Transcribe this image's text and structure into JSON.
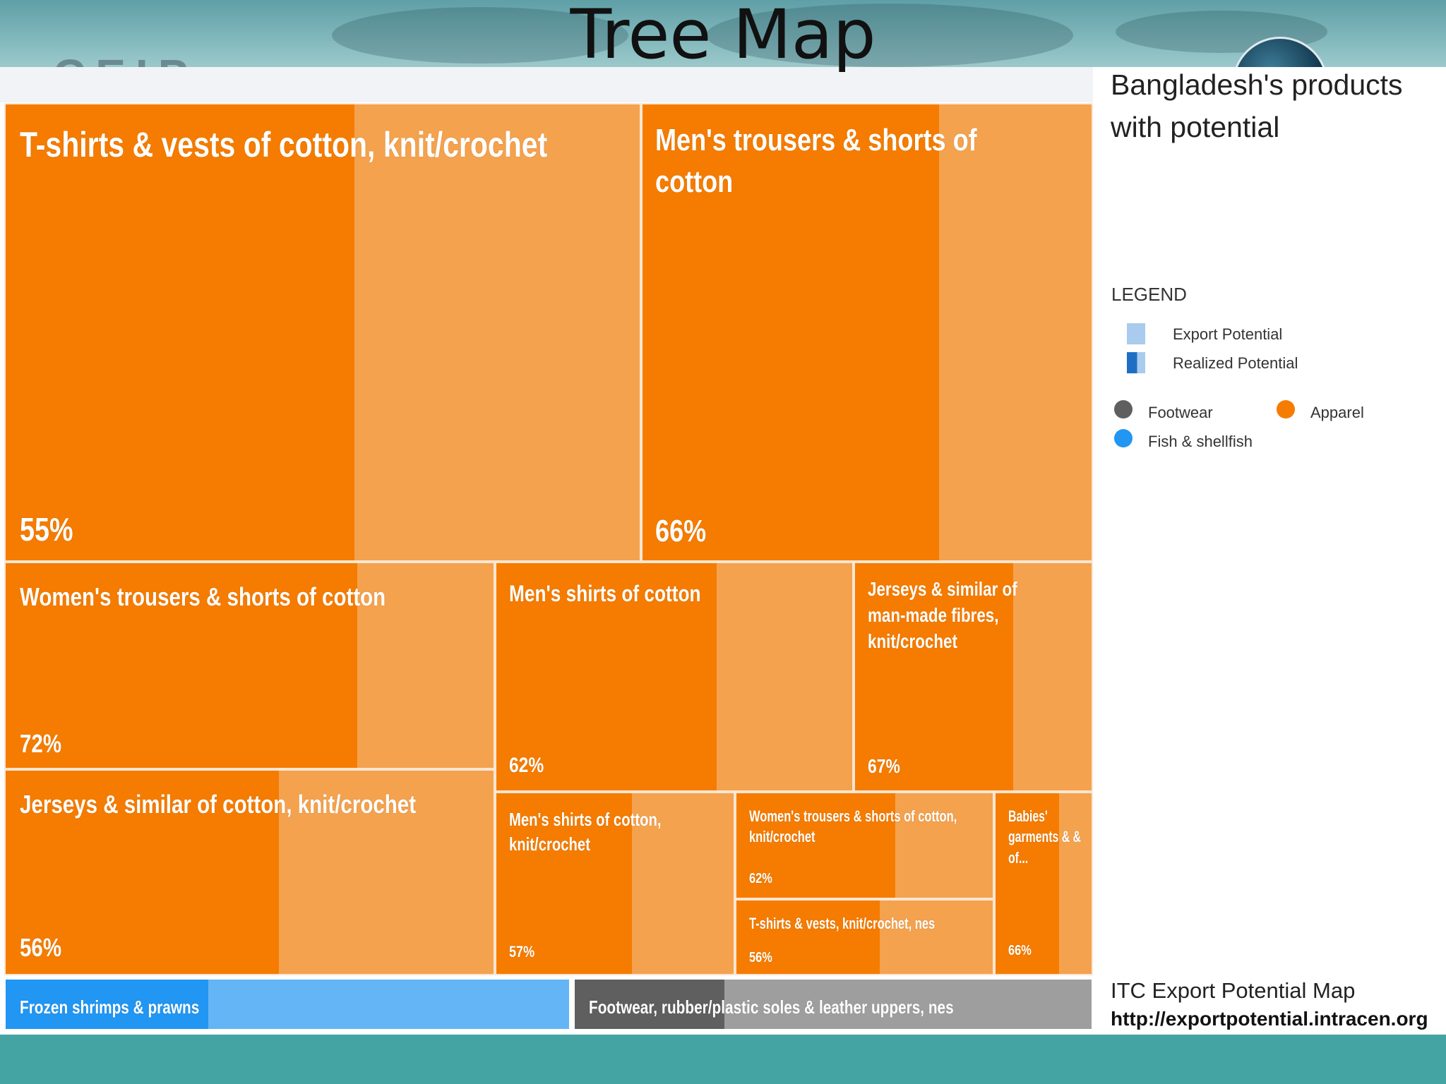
{
  "slide": {
    "title": "Tree Map",
    "logo_text": "CEIP"
  },
  "panel": {
    "title": "Bangladesh's products with potential",
    "legend_heading": "LEGEND",
    "legend_potential": [
      {
        "label": "Export Potential",
        "icon": "light-blue-square"
      },
      {
        "label": "Realized Potential",
        "icon": "half-dark-blue-square"
      }
    ],
    "legend_sectors": [
      {
        "label": "Footwear",
        "color": "#5f5f5f"
      },
      {
        "label": "Apparel",
        "color": "#f57c00"
      },
      {
        "label": "Fish & shellfish",
        "color": "#2196f3"
      }
    ],
    "source_name": "ITC Export Potential Map",
    "source_url": "http://exportpotential.intracen.org"
  },
  "colors": {
    "apparel_realized": "#f57c00",
    "apparel_potential": "#f4a24e",
    "fish_realized": "#2196f3",
    "fish_potential": "#64b5f6",
    "footwear_realized": "#5f5f5f",
    "footwear_potential": "#9e9e9e",
    "footer_band": "#44a3a3"
  },
  "chart_data": {
    "type": "treemap",
    "title": "Bangladesh's products with potential",
    "value_meaning": "share of export potential already realized",
    "items": [
      {
        "label": "T-shirts & vests of cotton, knit/crochet",
        "sector": "Apparel",
        "realized_pct": 55,
        "realized_text": "55%"
      },
      {
        "label": "Men's trousers & shorts of cotton",
        "sector": "Apparel",
        "realized_pct": 66,
        "realized_text": "66%"
      },
      {
        "label": "Women's trousers & shorts of cotton",
        "sector": "Apparel",
        "realized_pct": 72,
        "realized_text": "72%"
      },
      {
        "label": "Jerseys & similar of cotton, knit/crochet",
        "sector": "Apparel",
        "realized_pct": 56,
        "realized_text": "56%"
      },
      {
        "label": "Men's shirts of cotton",
        "sector": "Apparel",
        "realized_pct": 62,
        "realized_text": "62%"
      },
      {
        "label": "Jerseys & similar of man-made fibres, knit/crochet",
        "sector": "Apparel",
        "realized_pct": 67,
        "realized_text": "67%"
      },
      {
        "label": "Men's shirts of cotton, knit/crochet",
        "sector": "Apparel",
        "realized_pct": 57,
        "realized_text": "57%"
      },
      {
        "label": "Women's trousers & shorts of cotton, knit/crochet",
        "sector": "Apparel",
        "realized_pct": 62,
        "realized_text": "62%"
      },
      {
        "label": "T-shirts & vests, knit/crochet, nes",
        "sector": "Apparel",
        "realized_pct": 56,
        "realized_text": "56%"
      },
      {
        "label": "Babies' garments & & of...",
        "sector": "Apparel",
        "realized_pct": 66,
        "realized_text": "66%"
      },
      {
        "label": "Frozen shrimps & prawns",
        "sector": "Fish & shellfish",
        "realized_pct": 36,
        "realized_text": ""
      },
      {
        "label": "Footwear, rubber/plastic soles & leather uppers, nes",
        "sector": "Footwear",
        "realized_pct": 29,
        "realized_text": ""
      }
    ]
  }
}
